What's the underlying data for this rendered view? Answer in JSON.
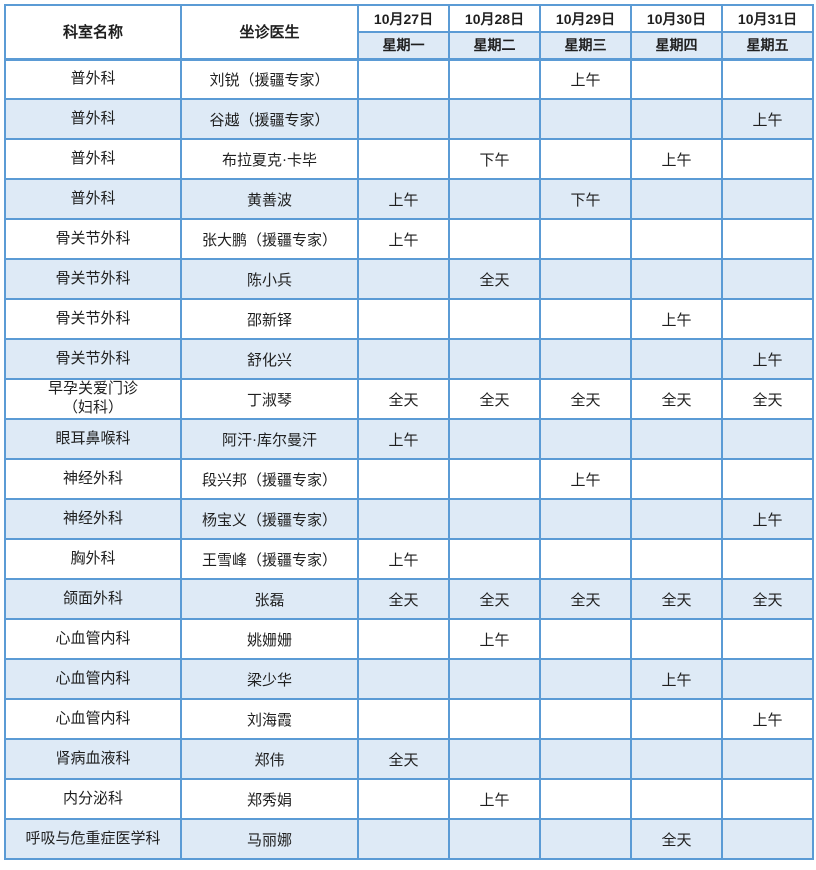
{
  "table": {
    "colors": {
      "border": "#5B9BD5",
      "band": "#DEEAF6",
      "text": "#1F1F1F"
    },
    "header": {
      "department_col": "科室名称",
      "doctor_col": "坐诊医生",
      "days": [
        {
          "date": "10月27日",
          "weekday": "星期一"
        },
        {
          "date": "10月28日",
          "weekday": "星期二"
        },
        {
          "date": "10月29日",
          "weekday": "星期三"
        },
        {
          "date": "10月30日",
          "weekday": "星期四"
        },
        {
          "date": "10月31日",
          "weekday": "星期五"
        }
      ]
    },
    "legend_values": [
      "上午",
      "下午",
      "全天"
    ],
    "rows": [
      {
        "department": "普外科",
        "doctor": "刘锐（援疆专家）",
        "schedule": [
          "",
          "",
          "上午",
          "",
          ""
        ]
      },
      {
        "department": "普外科",
        "doctor": "谷越（援疆专家）",
        "schedule": [
          "",
          "",
          "",
          "",
          "上午"
        ]
      },
      {
        "department": "普外科",
        "doctor": "布拉夏克·卡毕",
        "schedule": [
          "",
          "下午",
          "",
          "上午",
          ""
        ]
      },
      {
        "department": "普外科",
        "doctor": "黄善波",
        "schedule": [
          "上午",
          "",
          "下午",
          "",
          ""
        ]
      },
      {
        "department": "骨关节外科",
        "doctor": "张大鹏（援疆专家）",
        "schedule": [
          "上午",
          "",
          "",
          "",
          ""
        ]
      },
      {
        "department": "骨关节外科",
        "doctor": "陈小兵",
        "schedule": [
          "",
          "全天",
          "",
          "",
          ""
        ]
      },
      {
        "department": "骨关节外科",
        "doctor": "邵新铎",
        "schedule": [
          "",
          "",
          "",
          "上午",
          ""
        ]
      },
      {
        "department": "骨关节外科",
        "doctor": "舒化兴",
        "schedule": [
          "",
          "",
          "",
          "",
          "上午"
        ]
      },
      {
        "department": "早孕关爱门诊\n（妇科）",
        "doctor": "丁淑琴",
        "schedule": [
          "全天",
          "全天",
          "全天",
          "全天",
          "全天"
        ]
      },
      {
        "department": "眼耳鼻喉科",
        "doctor": "阿汗·库尔曼汗",
        "schedule": [
          "上午",
          "",
          "",
          "",
          ""
        ]
      },
      {
        "department": "神经外科",
        "doctor": "段兴邦（援疆专家）",
        "schedule": [
          "",
          "",
          "上午",
          "",
          ""
        ]
      },
      {
        "department": "神经外科",
        "doctor": "杨宝义（援疆专家）",
        "schedule": [
          "",
          "",
          "",
          "",
          "上午"
        ]
      },
      {
        "department": "胸外科",
        "doctor": "王雪峰（援疆专家）",
        "schedule": [
          "上午",
          "",
          "",
          "",
          ""
        ]
      },
      {
        "department": "颌面外科",
        "doctor": "张磊",
        "schedule": [
          "全天",
          "全天",
          "全天",
          "全天",
          "全天"
        ]
      },
      {
        "department": "心血管内科",
        "doctor": "姚姗姗",
        "schedule": [
          "",
          "上午",
          "",
          "",
          ""
        ]
      },
      {
        "department": "心血管内科",
        "doctor": "梁少华",
        "schedule": [
          "",
          "",
          "",
          "上午",
          ""
        ]
      },
      {
        "department": "心血管内科",
        "doctor": "刘海霞",
        "schedule": [
          "",
          "",
          "",
          "",
          "上午"
        ]
      },
      {
        "department": "肾病血液科",
        "doctor": "郑伟",
        "schedule": [
          "全天",
          "",
          "",
          "",
          ""
        ]
      },
      {
        "department": "内分泌科",
        "doctor": "郑秀娟",
        "schedule": [
          "",
          "上午",
          "",
          "",
          ""
        ]
      },
      {
        "department": "呼吸与危重症医学科",
        "doctor": "马丽娜",
        "schedule": [
          "",
          "",
          "",
          "全天",
          ""
        ]
      }
    ]
  }
}
